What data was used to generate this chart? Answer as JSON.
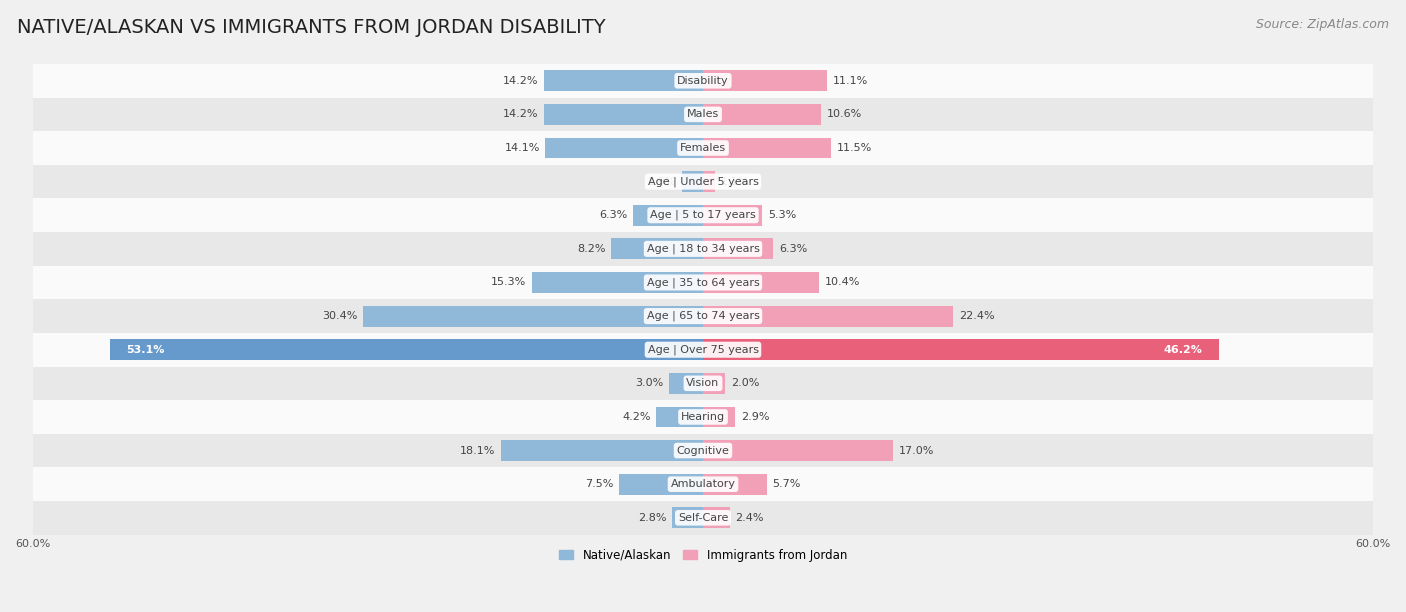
{
  "title": "NATIVE/ALASKAN VS IMMIGRANTS FROM JORDAN DISABILITY",
  "source": "Source: ZipAtlas.com",
  "categories": [
    "Disability",
    "Males",
    "Females",
    "Age | Under 5 years",
    "Age | 5 to 17 years",
    "Age | 18 to 34 years",
    "Age | 35 to 64 years",
    "Age | 65 to 74 years",
    "Age | Over 75 years",
    "Vision",
    "Hearing",
    "Cognitive",
    "Ambulatory",
    "Self-Care"
  ],
  "native_values": [
    14.2,
    14.2,
    14.1,
    1.9,
    6.3,
    8.2,
    15.3,
    30.4,
    53.1,
    3.0,
    4.2,
    18.1,
    7.5,
    2.8
  ],
  "jordan_values": [
    11.1,
    10.6,
    11.5,
    1.1,
    5.3,
    6.3,
    10.4,
    22.4,
    46.2,
    2.0,
    2.9,
    17.0,
    5.7,
    2.4
  ],
  "native_color": "#90b8d8",
  "jordan_color": "#f2a0b8",
  "native_highlight_color": "#6699cc",
  "jordan_highlight_color": "#e8607a",
  "xlim": 60.0,
  "bar_height": 0.62,
  "bg_color": "#f0f0f0",
  "row_bg_light": "#fafafa",
  "row_bg_dark": "#e8e8e8",
  "legend_label_native": "Native/Alaskan",
  "legend_label_jordan": "Immigrants from Jordan",
  "title_fontsize": 14,
  "source_fontsize": 9,
  "label_fontsize": 8,
  "tick_fontsize": 8,
  "category_fontsize": 8
}
